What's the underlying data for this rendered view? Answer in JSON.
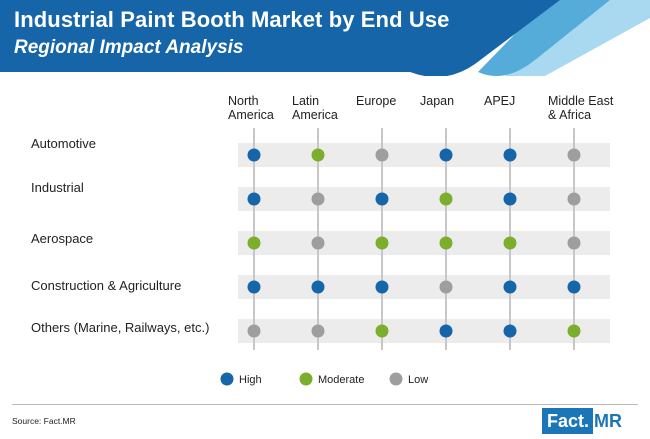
{
  "header": {
    "title": "Industrial Paint Booth Market by End Use",
    "subtitle": "Regional Impact Analysis"
  },
  "colors": {
    "banner_dark": "#1565a8",
    "banner_mid": "#55acd9",
    "banner_light": "#a9d9f1",
    "high": "#1565a8",
    "moderate": "#7cae2d",
    "low": "#9e9e9e",
    "row_band": "#ececec",
    "guide_line": "#c7c7c7"
  },
  "chart_data": {
    "type": "table",
    "title": "Industrial Paint Booth Market by End Use",
    "subtitle": "Regional Impact Analysis",
    "columns": [
      {
        "lines": [
          "North",
          "America"
        ]
      },
      {
        "lines": [
          "Latin",
          "America"
        ]
      },
      {
        "lines": [
          "Europe"
        ]
      },
      {
        "lines": [
          "Japan"
        ]
      },
      {
        "lines": [
          "APEJ"
        ]
      },
      {
        "lines": [
          "Middle East",
          "& Africa"
        ]
      }
    ],
    "rows": [
      {
        "label": "Automotive",
        "values": [
          "high",
          "moderate",
          "low",
          "high",
          "high",
          "low"
        ]
      },
      {
        "label": "Industrial",
        "values": [
          "high",
          "low",
          "high",
          "moderate",
          "high",
          "low"
        ]
      },
      {
        "label": "Aerospace",
        "values": [
          "moderate",
          "low",
          "moderate",
          "moderate",
          "moderate",
          "low"
        ]
      },
      {
        "label": "Construction & Agriculture",
        "values": [
          "high",
          "high",
          "high",
          "low",
          "high",
          "high"
        ]
      },
      {
        "label": "Others (Marine, Railways, etc.)",
        "values": [
          "low",
          "low",
          "moderate",
          "high",
          "high",
          "moderate"
        ]
      }
    ],
    "legend": [
      {
        "key": "high",
        "label": "High"
      },
      {
        "key": "moderate",
        "label": "Moderate"
      },
      {
        "key": "low",
        "label": "Low"
      }
    ]
  },
  "footer": {
    "source": "Source: Fact.MR",
    "logo_left": "Fact.",
    "logo_right": "MR"
  }
}
